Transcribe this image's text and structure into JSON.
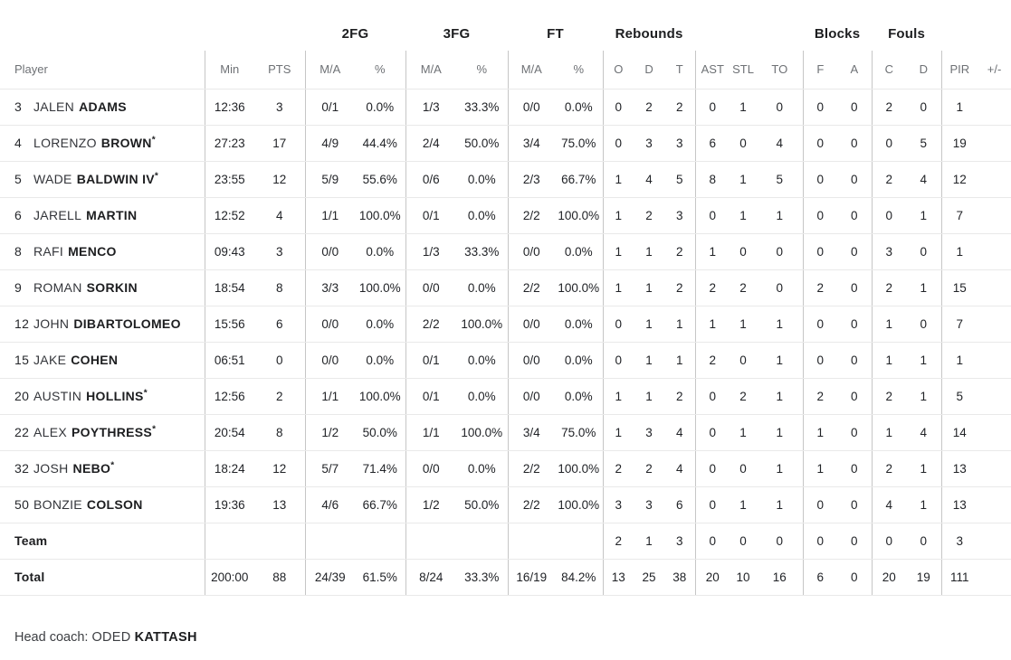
{
  "colors": {
    "text_dark": "#1d1e20",
    "text_gray": "#6e7175",
    "divider_vertical": "#c6c6c6",
    "divider_horizontal": "#e9e9e9"
  },
  "table": {
    "starter_mark": "*",
    "groups": {
      "fg2": "2FG",
      "fg3": "3FG",
      "ft": "FT",
      "rebounds": "Rebounds",
      "blocks": "Blocks",
      "fouls": "Fouls"
    },
    "sub_headers": {
      "player": "Player",
      "min": "Min",
      "pts": "PTS",
      "ma": "M/A",
      "pct": "%",
      "reb_o": "O",
      "reb_d": "D",
      "reb_t": "T",
      "ast": "AST",
      "stl": "STL",
      "to": "TO",
      "blk_f": "F",
      "blk_a": "A",
      "foul_c": "C",
      "foul_d": "D",
      "pir": "PIR",
      "plus_minus": "+/-"
    },
    "players": [
      {
        "num": "3",
        "first": "JALEN",
        "last": "ADAMS",
        "starter": false,
        "min": "12:36",
        "pts": "3",
        "fg2_ma": "0/1",
        "fg2_pct": "0.0%",
        "fg3_ma": "1/3",
        "fg3_pct": "33.3%",
        "ft_ma": "0/0",
        "ft_pct": "0.0%",
        "reb_o": "0",
        "reb_d": "2",
        "reb_t": "2",
        "ast": "0",
        "stl": "1",
        "to": "0",
        "blk_f": "0",
        "blk_a": "0",
        "foul_c": "2",
        "foul_d": "0",
        "pir": "1",
        "pm": ""
      },
      {
        "num": "4",
        "first": "LORENZO",
        "last": "BROWN",
        "starter": true,
        "min": "27:23",
        "pts": "17",
        "fg2_ma": "4/9",
        "fg2_pct": "44.4%",
        "fg3_ma": "2/4",
        "fg3_pct": "50.0%",
        "ft_ma": "3/4",
        "ft_pct": "75.0%",
        "reb_o": "0",
        "reb_d": "3",
        "reb_t": "3",
        "ast": "6",
        "stl": "0",
        "to": "4",
        "blk_f": "0",
        "blk_a": "0",
        "foul_c": "0",
        "foul_d": "5",
        "pir": "19",
        "pm": ""
      },
      {
        "num": "5",
        "first": "WADE",
        "last": "BALDWIN IV",
        "starter": true,
        "min": "23:55",
        "pts": "12",
        "fg2_ma": "5/9",
        "fg2_pct": "55.6%",
        "fg3_ma": "0/6",
        "fg3_pct": "0.0%",
        "ft_ma": "2/3",
        "ft_pct": "66.7%",
        "reb_o": "1",
        "reb_d": "4",
        "reb_t": "5",
        "ast": "8",
        "stl": "1",
        "to": "5",
        "blk_f": "0",
        "blk_a": "0",
        "foul_c": "2",
        "foul_d": "4",
        "pir": "12",
        "pm": ""
      },
      {
        "num": "6",
        "first": "JARELL",
        "last": "MARTIN",
        "starter": false,
        "min": "12:52",
        "pts": "4",
        "fg2_ma": "1/1",
        "fg2_pct": "100.0%",
        "fg3_ma": "0/1",
        "fg3_pct": "0.0%",
        "ft_ma": "2/2",
        "ft_pct": "100.0%",
        "reb_o": "1",
        "reb_d": "2",
        "reb_t": "3",
        "ast": "0",
        "stl": "1",
        "to": "1",
        "blk_f": "0",
        "blk_a": "0",
        "foul_c": "0",
        "foul_d": "1",
        "pir": "7",
        "pm": ""
      },
      {
        "num": "8",
        "first": "RAFI",
        "last": "MENCO",
        "starter": false,
        "min": "09:43",
        "pts": "3",
        "fg2_ma": "0/0",
        "fg2_pct": "0.0%",
        "fg3_ma": "1/3",
        "fg3_pct": "33.3%",
        "ft_ma": "0/0",
        "ft_pct": "0.0%",
        "reb_o": "1",
        "reb_d": "1",
        "reb_t": "2",
        "ast": "1",
        "stl": "0",
        "to": "0",
        "blk_f": "0",
        "blk_a": "0",
        "foul_c": "3",
        "foul_d": "0",
        "pir": "1",
        "pm": ""
      },
      {
        "num": "9",
        "first": "ROMAN",
        "last": "SORKIN",
        "starter": false,
        "min": "18:54",
        "pts": "8",
        "fg2_ma": "3/3",
        "fg2_pct": "100.0%",
        "fg3_ma": "0/0",
        "fg3_pct": "0.0%",
        "ft_ma": "2/2",
        "ft_pct": "100.0%",
        "reb_o": "1",
        "reb_d": "1",
        "reb_t": "2",
        "ast": "2",
        "stl": "2",
        "to": "0",
        "blk_f": "2",
        "blk_a": "0",
        "foul_c": "2",
        "foul_d": "1",
        "pir": "15",
        "pm": ""
      },
      {
        "num": "12",
        "first": "JOHN",
        "last": "DIBARTOLOMEO",
        "starter": false,
        "min": "15:56",
        "pts": "6",
        "fg2_ma": "0/0",
        "fg2_pct": "0.0%",
        "fg3_ma": "2/2",
        "fg3_pct": "100.0%",
        "ft_ma": "0/0",
        "ft_pct": "0.0%",
        "reb_o": "0",
        "reb_d": "1",
        "reb_t": "1",
        "ast": "1",
        "stl": "1",
        "to": "1",
        "blk_f": "0",
        "blk_a": "0",
        "foul_c": "1",
        "foul_d": "0",
        "pir": "7",
        "pm": ""
      },
      {
        "num": "15",
        "first": "JAKE",
        "last": "COHEN",
        "starter": false,
        "min": "06:51",
        "pts": "0",
        "fg2_ma": "0/0",
        "fg2_pct": "0.0%",
        "fg3_ma": "0/1",
        "fg3_pct": "0.0%",
        "ft_ma": "0/0",
        "ft_pct": "0.0%",
        "reb_o": "0",
        "reb_d": "1",
        "reb_t": "1",
        "ast": "2",
        "stl": "0",
        "to": "1",
        "blk_f": "0",
        "blk_a": "0",
        "foul_c": "1",
        "foul_d": "1",
        "pir": "1",
        "pm": ""
      },
      {
        "num": "20",
        "first": "AUSTIN",
        "last": "HOLLINS",
        "starter": true,
        "min": "12:56",
        "pts": "2",
        "fg2_ma": "1/1",
        "fg2_pct": "100.0%",
        "fg3_ma": "0/1",
        "fg3_pct": "0.0%",
        "ft_ma": "0/0",
        "ft_pct": "0.0%",
        "reb_o": "1",
        "reb_d": "1",
        "reb_t": "2",
        "ast": "0",
        "stl": "2",
        "to": "1",
        "blk_f": "2",
        "blk_a": "0",
        "foul_c": "2",
        "foul_d": "1",
        "pir": "5",
        "pm": ""
      },
      {
        "num": "22",
        "first": "ALEX",
        "last": "POYTHRESS",
        "starter": true,
        "min": "20:54",
        "pts": "8",
        "fg2_ma": "1/2",
        "fg2_pct": "50.0%",
        "fg3_ma": "1/1",
        "fg3_pct": "100.0%",
        "ft_ma": "3/4",
        "ft_pct": "75.0%",
        "reb_o": "1",
        "reb_d": "3",
        "reb_t": "4",
        "ast": "0",
        "stl": "1",
        "to": "1",
        "blk_f": "1",
        "blk_a": "0",
        "foul_c": "1",
        "foul_d": "4",
        "pir": "14",
        "pm": ""
      },
      {
        "num": "32",
        "first": "JOSH",
        "last": "NEBO",
        "starter": true,
        "min": "18:24",
        "pts": "12",
        "fg2_ma": "5/7",
        "fg2_pct": "71.4%",
        "fg3_ma": "0/0",
        "fg3_pct": "0.0%",
        "ft_ma": "2/2",
        "ft_pct": "100.0%",
        "reb_o": "2",
        "reb_d": "2",
        "reb_t": "4",
        "ast": "0",
        "stl": "0",
        "to": "1",
        "blk_f": "1",
        "blk_a": "0",
        "foul_c": "2",
        "foul_d": "1",
        "pir": "13",
        "pm": ""
      },
      {
        "num": "50",
        "first": "BONZIE",
        "last": "COLSON",
        "starter": false,
        "min": "19:36",
        "pts": "13",
        "fg2_ma": "4/6",
        "fg2_pct": "66.7%",
        "fg3_ma": "1/2",
        "fg3_pct": "50.0%",
        "ft_ma": "2/2",
        "ft_pct": "100.0%",
        "reb_o": "3",
        "reb_d": "3",
        "reb_t": "6",
        "ast": "0",
        "stl": "1",
        "to": "1",
        "blk_f": "0",
        "blk_a": "0",
        "foul_c": "4",
        "foul_d": "1",
        "pir": "13",
        "pm": ""
      }
    ],
    "team_row": {
      "label": "Team",
      "min": "",
      "pts": "",
      "fg2_ma": "",
      "fg2_pct": "",
      "fg3_ma": "",
      "fg3_pct": "",
      "ft_ma": "",
      "ft_pct": "",
      "reb_o": "2",
      "reb_d": "1",
      "reb_t": "3",
      "ast": "0",
      "stl": "0",
      "to": "0",
      "blk_f": "0",
      "blk_a": "0",
      "foul_c": "0",
      "foul_d": "0",
      "pir": "3",
      "pm": ""
    },
    "total_row": {
      "label": "Total",
      "min": "200:00",
      "pts": "88",
      "fg2_ma": "24/39",
      "fg2_pct": "61.5%",
      "fg3_ma": "8/24",
      "fg3_pct": "33.3%",
      "ft_ma": "16/19",
      "ft_pct": "84.2%",
      "reb_o": "13",
      "reb_d": "25",
      "reb_t": "38",
      "ast": "20",
      "stl": "10",
      "to": "16",
      "blk_f": "6",
      "blk_a": "0",
      "foul_c": "20",
      "foul_d": "19",
      "pir": "111",
      "pm": ""
    }
  },
  "footer": {
    "head_coach_label": "Head coach:",
    "coach_first": "ODED",
    "coach_last": "KATTASH"
  }
}
